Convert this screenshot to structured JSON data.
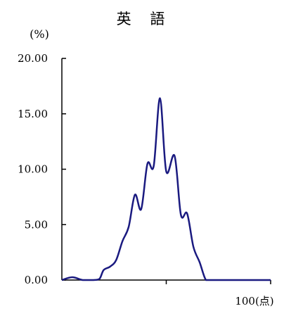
{
  "chart_data": {
    "type": "line",
    "title": "英 語",
    "ylabel": "(%)",
    "x_end_label": "100(点)",
    "xlim": [
      0,
      100
    ],
    "ylim": [
      0,
      20
    ],
    "yticks": [
      0,
      5,
      10,
      15,
      20
    ],
    "ytick_labels": [
      "0.00",
      "5.00",
      "10.00",
      "15.00",
      "20.00"
    ],
    "xticks": [
      50,
      100
    ],
    "line_color": "#1a1a80",
    "series": [
      {
        "x": [
          0,
          5,
          10,
          15,
          18,
          20,
          23,
          26,
          29,
          32,
          35,
          38,
          41,
          44,
          47,
          50,
          54,
          57,
          60,
          63,
          66,
          69,
          72,
          75,
          78,
          81,
          84,
          87,
          90,
          95,
          100
        ],
        "values": [
          0.0,
          0.25,
          0.0,
          0.0,
          0.1,
          0.9,
          1.2,
          1.8,
          3.5,
          4.8,
          7.7,
          6.4,
          10.5,
          10.3,
          16.4,
          9.8,
          11.2,
          5.9,
          6.0,
          3.0,
          1.6,
          0.0,
          0.0,
          0.0,
          0.0,
          0.0,
          0.0,
          0.0,
          0.0,
          0.0,
          0.0
        ]
      }
    ]
  }
}
